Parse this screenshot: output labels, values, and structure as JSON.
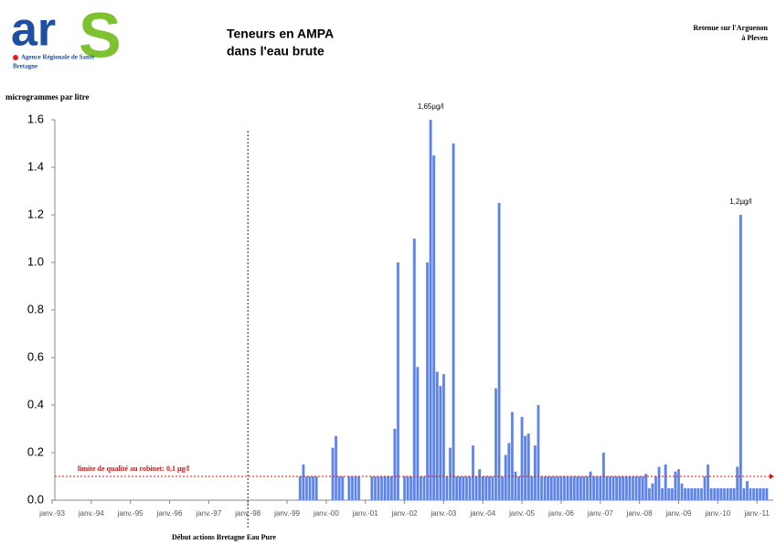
{
  "logo": {
    "letters": [
      "ar",
      "S"
    ],
    "org": "Agence Régionale de Santé",
    "region": "Bretagne"
  },
  "chart_data": {
    "type": "bar",
    "title": [
      "Teneurs en AMPA",
      "dans l'eau brute"
    ],
    "subtitle": [
      "Retenue sur l'Arguenon",
      "à Pleven"
    ],
    "y_label": "microgrammes par litre",
    "color": "#5b82ea",
    "xlim": [
      "1993-01",
      "2011-06"
    ],
    "xticks": [
      {
        "value": "1993-01",
        "label": "janv.-93"
      },
      {
        "value": "1994-01",
        "label": "janv.-94"
      },
      {
        "value": "1995-01",
        "label": "janv.-95"
      },
      {
        "value": "1996-01",
        "label": "janv.-96"
      },
      {
        "value": "1997-01",
        "label": "janv.-97"
      },
      {
        "value": "1998-01",
        "label": "janv.-98"
      },
      {
        "value": "1999-01",
        "label": "janv.-99"
      },
      {
        "value": "2000-01",
        "label": "janv.-00"
      },
      {
        "value": "2001-01",
        "label": "janv.-01"
      },
      {
        "value": "2002-01",
        "label": "janv.-02"
      },
      {
        "value": "2003-01",
        "label": "janv.-03"
      },
      {
        "value": "2004-01",
        "label": "janv.-04"
      },
      {
        "value": "2005-01",
        "label": "janv.-05"
      },
      {
        "value": "2006-01",
        "label": "janv.-06"
      },
      {
        "value": "2007-01",
        "label": "janv.-07"
      },
      {
        "value": "2008-01",
        "label": "janv.-08"
      },
      {
        "value": "2009-01",
        "label": "janv.-09"
      },
      {
        "value": "2010-01",
        "label": "janv.-10"
      },
      {
        "value": "2011-01",
        "label": "janv.-11"
      }
    ],
    "ylim": [
      0,
      1.6
    ],
    "yticks": [
      {
        "value": 0,
        "label": "0.0"
      },
      0.2,
      0.4,
      0.6,
      0.8,
      {
        "value": 1,
        "label": "1.0"
      },
      1.2,
      1.4,
      1.6
    ],
    "x": [
      "1999-05",
      "1999-06",
      "1999-07",
      "1999-08",
      "1999-09",
      "1999-10",
      "2000-03",
      "2000-04",
      "2000-05",
      "2000-06",
      "2000-08",
      "2000-09",
      "2000-10",
      "2000-11",
      "2001-03",
      "2001-04",
      "2001-05",
      "2001-06",
      "2001-07",
      "2001-08",
      "2001-09",
      "2001-10",
      "2001-11",
      "2002-01",
      "2002-02",
      "2002-03",
      "2002-04",
      "2002-05",
      "2002-06",
      "2002-07",
      "2002-08",
      "2002-09",
      "2002-10",
      "2002-11",
      "2002-12",
      "2003-01",
      "2003-02",
      "2003-03",
      "2003-04",
      "2003-05",
      "2003-06",
      "2003-07",
      "2003-08",
      "2003-09",
      "2003-10",
      "2003-11",
      "2003-12",
      "2004-01",
      "2004-02",
      "2004-03",
      "2004-04",
      "2004-05",
      "2004-06",
      "2004-07",
      "2004-08",
      "2004-09",
      "2004-10",
      "2004-11",
      "2004-12",
      "2005-01",
      "2005-02",
      "2005-03",
      "2005-04",
      "2005-05",
      "2005-06",
      "2005-07",
      "2005-08",
      "2005-09",
      "2005-10",
      "2005-11",
      "2005-12",
      "2006-01",
      "2006-02",
      "2006-03",
      "2006-04",
      "2006-05",
      "2006-06",
      "2006-07",
      "2006-08",
      "2006-09",
      "2006-10",
      "2006-11",
      "2006-12",
      "2007-01",
      "2007-02",
      "2007-03",
      "2007-04",
      "2007-05",
      "2007-06",
      "2007-07",
      "2007-08",
      "2007-09",
      "2007-10",
      "2007-11",
      "2007-12",
      "2008-01",
      "2008-02",
      "2008-03",
      "2008-04",
      "2008-05",
      "2008-06",
      "2008-07",
      "2008-08",
      "2008-09",
      "2008-10",
      "2008-11",
      "2008-12",
      "2009-01",
      "2009-02",
      "2009-03",
      "2009-04",
      "2009-05",
      "2009-06",
      "2009-07",
      "2009-08",
      "2009-09",
      "2009-10",
      "2009-11",
      "2009-12",
      "2010-01",
      "2010-02",
      "2010-03",
      "2010-04",
      "2010-05",
      "2010-06",
      "2010-07",
      "2010-08",
      "2010-09",
      "2010-10",
      "2010-11",
      "2010-12",
      "2011-01",
      "2011-02",
      "2011-03",
      "2011-04"
    ],
    "values": [
      0.1,
      0.15,
      0.1,
      0.1,
      0.1,
      0.1,
      0.22,
      0.27,
      0.1,
      0.1,
      0.1,
      0.1,
      0.1,
      0.1,
      0.1,
      0.1,
      0.1,
      0.1,
      0.1,
      0.1,
      0.1,
      0.3,
      1.0,
      0.1,
      0.1,
      0.1,
      1.1,
      0.56,
      0.1,
      0.1,
      1.0,
      1.65,
      1.45,
      0.54,
      0.48,
      0.53,
      0.1,
      0.22,
      1.5,
      0.1,
      0.1,
      0.1,
      0.1,
      0.1,
      0.23,
      0.1,
      0.13,
      0.1,
      0.1,
      0.1,
      0.1,
      0.47,
      1.25,
      0.1,
      0.19,
      0.24,
      0.37,
      0.12,
      0.1,
      0.35,
      0.27,
      0.28,
      0.1,
      0.23,
      0.4,
      0.1,
      0.1,
      0.1,
      0.1,
      0.1,
      0.1,
      0.1,
      0.1,
      0.1,
      0.1,
      0.1,
      0.1,
      0.1,
      0.1,
      0.1,
      0.12,
      0.1,
      0.1,
      0.1,
      0.2,
      0.1,
      0.1,
      0.1,
      0.1,
      0.1,
      0.1,
      0.1,
      0.1,
      0.1,
      0.1,
      0.1,
      0.1,
      0.11,
      0.05,
      0.07,
      0.1,
      0.14,
      0.05,
      0.15,
      0.05,
      0.05,
      0.12,
      0.13,
      0.07,
      0.05,
      0.05,
      0.05,
      0.05,
      0.05,
      0.05,
      0.1,
      0.15,
      0.05,
      0.05,
      0.05,
      0.05,
      0.05,
      0.05,
      0.05,
      0.05,
      0.14,
      1.2,
      0.05,
      0.08,
      0.05,
      0.05,
      0.05,
      0.05,
      0.05,
      0.05
    ],
    "annotations": [
      {
        "text": "1,65µg/l",
        "x": "2002-09"
      },
      {
        "text": "1,2µg/l",
        "x": "2010-08"
      }
    ],
    "hline": {
      "value": 0.1,
      "label": "limite de qualité au robinet: 0,1 µg/l",
      "color": "#e01010"
    },
    "vline": {
      "x": "1998-01",
      "label": "Début actions Bretagne Eau Pure"
    }
  }
}
